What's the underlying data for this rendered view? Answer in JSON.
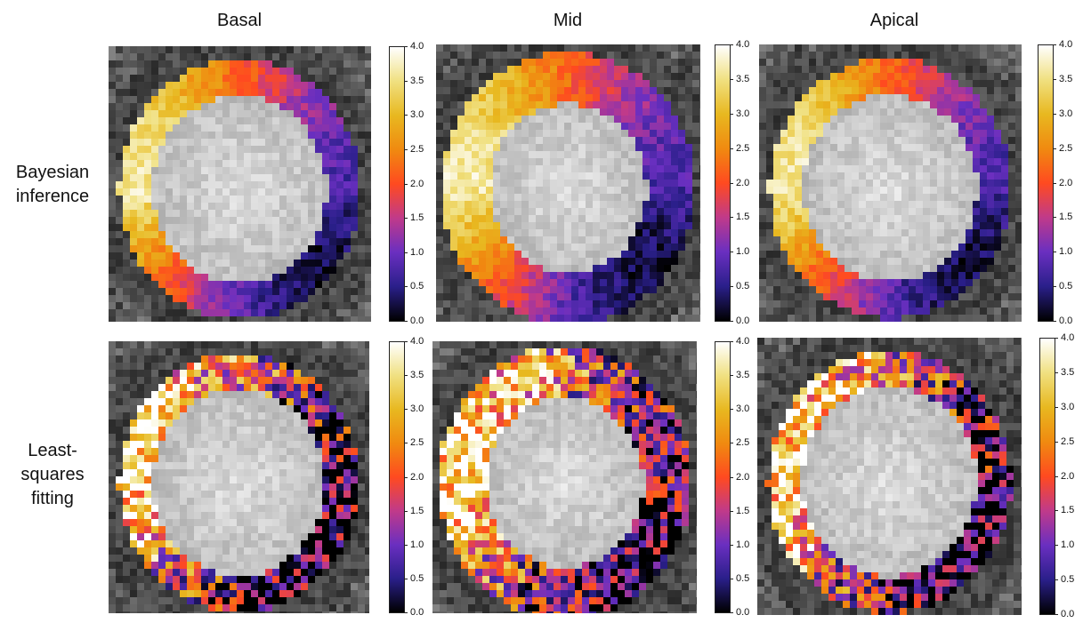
{
  "columns": [
    "Basal",
    "Mid",
    "Apical"
  ],
  "rows": [
    {
      "label_lines": [
        "Bayesian",
        "inference"
      ]
    },
    {
      "label_lines": [
        "Least-",
        "squares",
        "fitting"
      ]
    }
  ],
  "colorbar": {
    "ticks": [
      "4.0",
      "3.5",
      "3.0",
      "2.5",
      "2.0",
      "1.5",
      "1.0",
      "0.5",
      "0.0"
    ],
    "range": [
      0,
      4
    ],
    "colormap": "CMRmap-like",
    "colors": [
      "#000000",
      "#2a1f8a",
      "#6a2fc0",
      "#c03a8a",
      "#ff4a20",
      "#f08a10",
      "#e8b820",
      "#f0e080",
      "#ffffff"
    ]
  },
  "panels": [
    {
      "id": "basal-bayesian",
      "row": 0,
      "col": 0
    },
    {
      "id": "mid-bayesian",
      "row": 0,
      "col": 1
    },
    {
      "id": "apical-bayesian",
      "row": 0,
      "col": 2
    },
    {
      "id": "basal-lsq",
      "row": 1,
      "col": 0
    },
    {
      "id": "mid-lsq",
      "row": 1,
      "col": 1
    },
    {
      "id": "apical-lsq",
      "row": 1,
      "col": 2
    }
  ]
}
